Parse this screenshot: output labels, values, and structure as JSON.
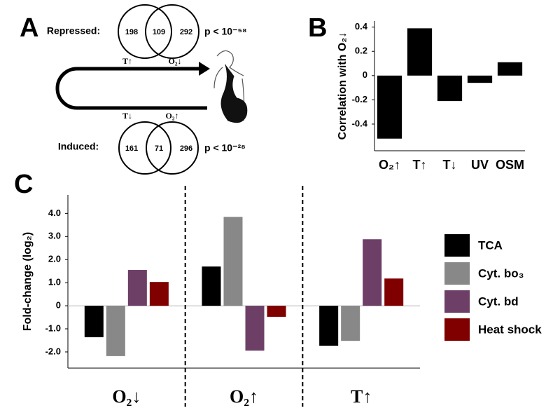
{
  "diagram": {
    "label": "A",
    "repressed": {
      "title": "Repressed:",
      "left": 198,
      "overlap": 109,
      "right": 292,
      "p": "p < 10⁻⁵⁸"
    },
    "induced": {
      "title": "Induced:",
      "left": 161,
      "overlap": 71,
      "right": 296,
      "p": "p < 10⁻²⁸"
    },
    "top_left": "T↑",
    "top_right": "O₂↓",
    "bottom_left": "T↓",
    "bottom_right": "O₂↑"
  },
  "chart_data": [
    {
      "type": "bar",
      "panel_label": "B",
      "ylabel": "Correlation with O₂↓",
      "categories": [
        "O₂↑",
        "T↑",
        "T↓",
        "UV",
        "OSM"
      ],
      "values": [
        -0.52,
        0.39,
        -0.21,
        -0.06,
        0.11
      ],
      "color": "#000000",
      "ylim": [
        -0.62,
        0.45
      ],
      "yticks": [
        -0.4,
        -0.2,
        0,
        0.2,
        0.4
      ]
    },
    {
      "type": "bar",
      "panel_label": "C",
      "ylabel": "Fold-change (log₂)",
      "categories": [
        "O₂↓",
        "O₂↑",
        "T↑"
      ],
      "series": [
        {
          "name": "TCA",
          "color": "#000000",
          "values": [
            -1.36,
            1.7,
            -1.73
          ]
        },
        {
          "name": "Cyt. bo₃",
          "color": "#888888",
          "values": [
            -2.18,
            3.85,
            -1.52
          ]
        },
        {
          "name": "Cyt. bd",
          "color": "#6d3f66",
          "values": [
            1.55,
            -1.94,
            2.88
          ]
        },
        {
          "name": "Heat shock",
          "color": "#800000",
          "values": [
            1.03,
            -0.48,
            1.18
          ]
        }
      ],
      "ylim": [
        -2.7,
        4.8
      ],
      "yticks": [
        {
          "value": -2,
          "label": "-2.0"
        },
        {
          "value": -1,
          "label": "-1.0"
        },
        0,
        {
          "value": 1,
          "label": "1.0"
        },
        {
          "value": 2,
          "label": "2.0"
        },
        {
          "value": 3,
          "label": "3.0"
        },
        {
          "value": 4,
          "label": "4.0"
        }
      ],
      "legend": "right"
    }
  ]
}
